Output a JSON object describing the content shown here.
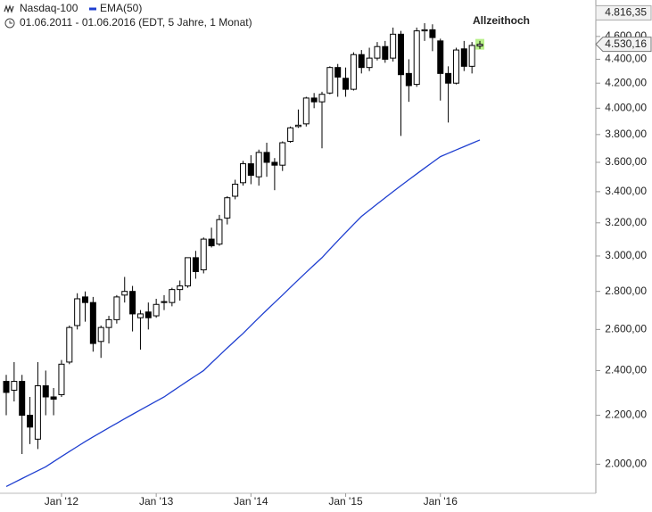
{
  "chart_data": {
    "type": "candlestick",
    "subtitle": "01.06.2011 - 01.06.2016 (EDT, 5 Jahre, 1 Monat)",
    "log_scale": true,
    "grid": false,
    "categories": [
      null,
      null,
      null,
      null,
      null,
      null,
      null,
      "Jan '12",
      null,
      null,
      null,
      null,
      null,
      null,
      null,
      null,
      null,
      null,
      null,
      "Jan '13",
      null,
      null,
      null,
      null,
      null,
      null,
      null,
      null,
      null,
      null,
      null,
      "Jan '14",
      null,
      null,
      null,
      null,
      null,
      null,
      null,
      null,
      null,
      null,
      null,
      "Jan '15",
      null,
      null,
      null,
      null,
      null,
      null,
      null,
      null,
      null,
      null,
      null,
      "Jan '16",
      null,
      null,
      null,
      null,
      null
    ],
    "series": [
      {
        "name": "Nasdaq-100",
        "type": "candlestick",
        "up_color": "#ffffff",
        "down_color": "#000000",
        "open": [
          2350,
          2310,
          2350,
          2200,
          2100,
          2330,
          2280,
          2290,
          2440,
          2620,
          2770,
          2740,
          2540,
          2610,
          2650,
          2780,
          2800,
          2660,
          2690,
          2670,
          2740,
          2740,
          2810,
          2830,
          2990,
          2920,
          3100,
          3070,
          3230,
          3370,
          3460,
          3590,
          3500,
          3670,
          3600,
          3580,
          3750,
          3860,
          3880,
          4080,
          4050,
          4120,
          4330,
          4240,
          4150,
          4440,
          4330,
          4410,
          4510,
          4410,
          4620,
          4280,
          4190,
          4650,
          4660,
          4560,
          4280,
          4200,
          4490,
          4340,
          4515
        ],
        "high": [
          2380,
          2440,
          2380,
          2280,
          2440,
          2400,
          2320,
          2450,
          2620,
          2790,
          2800,
          2770,
          2620,
          2670,
          2780,
          2880,
          2830,
          2700,
          2740,
          2760,
          2780,
          2820,
          2860,
          2990,
          3030,
          3110,
          3170,
          3250,
          3370,
          3480,
          3610,
          3650,
          3690,
          3740,
          3630,
          3750,
          3860,
          3990,
          4090,
          4120,
          4130,
          4340,
          4360,
          4330,
          4460,
          4480,
          4500,
          4550,
          4560,
          4680,
          4650,
          4400,
          4680,
          4720,
          4710,
          4580,
          4340,
          4500,
          4560,
          4550,
          4560
        ],
        "low": [
          2200,
          2260,
          2040,
          2080,
          2060,
          2200,
          2200,
          2280,
          2430,
          2600,
          2640,
          2490,
          2460,
          2530,
          2630,
          2740,
          2590,
          2500,
          2600,
          2660,
          2700,
          2720,
          2750,
          2820,
          2870,
          2900,
          3050,
          3060,
          3190,
          3350,
          3440,
          3450,
          3440,
          3500,
          3410,
          3540,
          3740,
          3850,
          3860,
          4000,
          3700,
          4110,
          4090,
          4090,
          4140,
          4280,
          4300,
          4390,
          4370,
          4380,
          3790,
          4050,
          4170,
          4560,
          4470,
          4060,
          3890,
          4190,
          4300,
          4280,
          4490
        ],
        "close": [
          2300,
          2350,
          2200,
          2150,
          2330,
          2280,
          2270,
          2430,
          2610,
          2760,
          2740,
          2530,
          2610,
          2650,
          2770,
          2800,
          2680,
          2680,
          2660,
          2730,
          2745,
          2810,
          2830,
          2990,
          2910,
          3100,
          3060,
          3220,
          3360,
          3450,
          3590,
          3510,
          3670,
          3600,
          3580,
          3740,
          3850,
          3870,
          4080,
          4050,
          4110,
          4330,
          4250,
          4150,
          4440,
          4330,
          4410,
          4510,
          4400,
          4620,
          4270,
          4180,
          4650,
          4660,
          4590,
          4280,
          4200,
          4480,
          4340,
          4520,
          4530.16
        ]
      },
      {
        "name": "EMA(50)",
        "type": "line",
        "color": "#1f3fd0",
        "values": [
          1915,
          1930,
          1945,
          1960,
          1975,
          1990,
          2010,
          2030,
          2050,
          2070,
          2090,
          2109,
          2128,
          2147,
          2166,
          2185,
          2204,
          2223,
          2242,
          2261,
          2280,
          2304,
          2328,
          2352,
          2376,
          2400,
          2436,
          2472,
          2508,
          2544,
          2580,
          2620,
          2660,
          2700,
          2740,
          2780,
          2822,
          2864,
          2906,
          2948,
          2990,
          3040,
          3090,
          3140,
          3190,
          3240,
          3280,
          3320,
          3360,
          3400,
          3440,
          3480,
          3520,
          3560,
          3600,
          3640,
          3664,
          3688,
          3712,
          3736,
          3760
        ]
      }
    ],
    "ylim": [
      1890,
      4870
    ],
    "yticks": [
      {
        "value": 2000,
        "label": "2.000,00"
      },
      {
        "value": 2200,
        "label": "2.200,00"
      },
      {
        "value": 2400,
        "label": "2.400,00"
      },
      {
        "value": 2600,
        "label": "2.600,00"
      },
      {
        "value": 2800,
        "label": "2.800,00"
      },
      {
        "value": 3000,
        "label": "3.000,00"
      },
      {
        "value": 3200,
        "label": "3.200,00"
      },
      {
        "value": 3400,
        "label": "3.400,00"
      },
      {
        "value": 3600,
        "label": "3.600,00"
      },
      {
        "value": 3800,
        "label": "3.800,00"
      },
      {
        "value": 4000,
        "label": "4.000,00"
      },
      {
        "value": 4200,
        "label": "4.200,00"
      },
      {
        "value": 4400,
        "label": "4.400,00"
      },
      {
        "value": 4600,
        "label": "4.600,00"
      }
    ],
    "annotations": [
      {
        "text": "Allzeithoch",
        "value": 4816.35,
        "label": "4.816,35"
      }
    ],
    "last_price": {
      "value": 4530.16,
      "label": "4.530,16",
      "highlight": "#b8f08a"
    }
  }
}
